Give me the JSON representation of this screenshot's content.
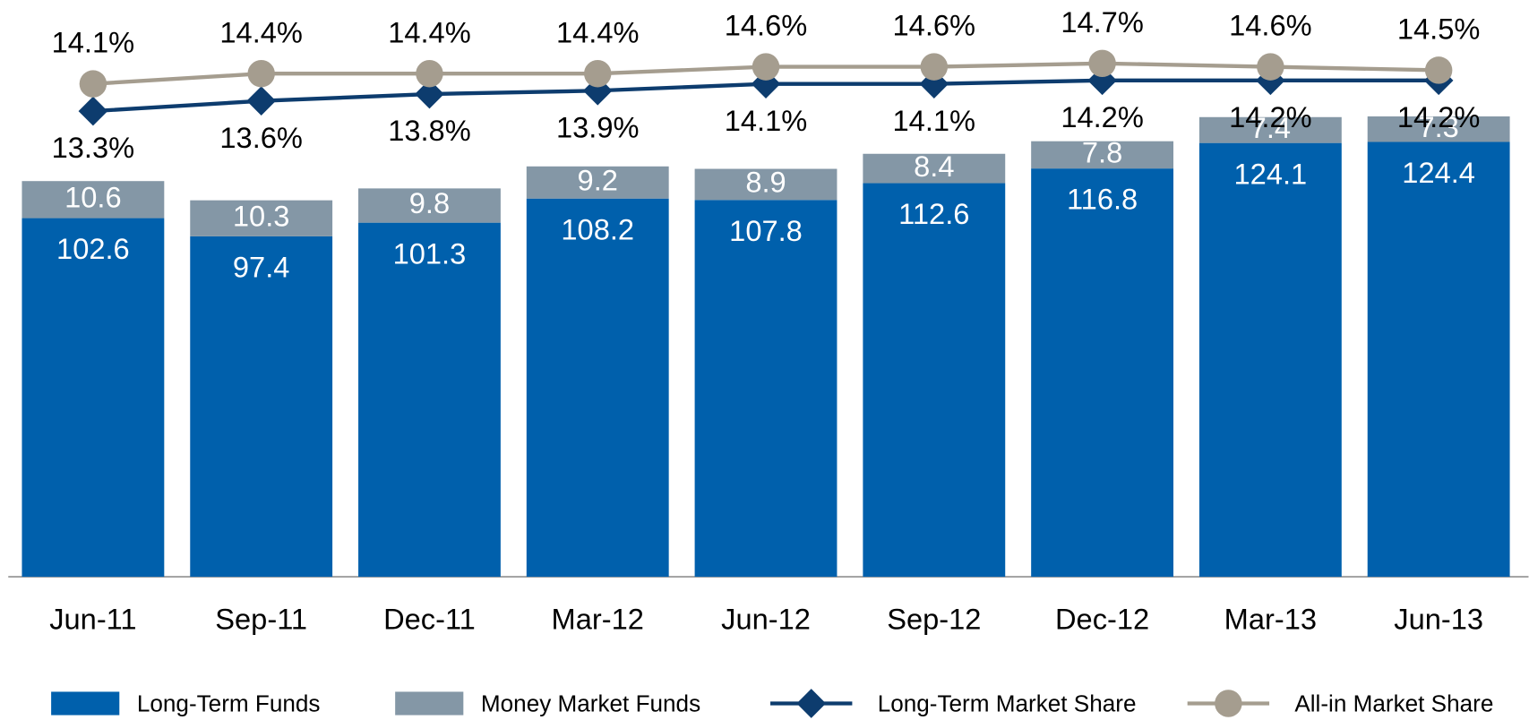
{
  "chart_data": {
    "type": "bar",
    "stacked": true,
    "categories": [
      "Jun-11",
      "Sep-11",
      "Dec-11",
      "Mar-12",
      "Jun-12",
      "Sep-12",
      "Dec-12",
      "Mar-13",
      "Jun-13"
    ],
    "ylim": [
      0,
      165
    ],
    "y2lim": [
      -0.36,
      16.56
    ],
    "legend": "bottom",
    "series": [
      {
        "name": "Long-Term Funds",
        "type": "bar",
        "color": "#0060ac",
        "values": [
          102.6,
          97.4,
          101.3,
          108.2,
          107.8,
          112.6,
          116.8,
          124.1,
          124.4
        ]
      },
      {
        "name": "Money Market Funds",
        "type": "bar",
        "color": "#8497a6",
        "values": [
          10.6,
          10.3,
          9.8,
          9.2,
          8.9,
          8.4,
          7.8,
          7.4,
          7.3
        ]
      },
      {
        "name": "Long-Term Market Share",
        "type": "line",
        "marker": "diamond",
        "axis": "y2",
        "color": "#0d3c6e",
        "values": [
          13.3,
          13.6,
          13.8,
          13.9,
          14.1,
          14.1,
          14.2,
          14.2,
          14.2
        ],
        "value_labels": [
          "13.3%",
          "13.6%",
          "13.8%",
          "13.9%",
          "14.1%",
          "14.1%",
          "14.2%",
          "14.2%",
          "14.2%"
        ]
      },
      {
        "name": "All-in Market Share",
        "type": "line",
        "marker": "circle",
        "axis": "y2",
        "color": "#a59d8f",
        "values": [
          14.1,
          14.4,
          14.4,
          14.4,
          14.6,
          14.6,
          14.7,
          14.6,
          14.5
        ],
        "value_labels": [
          "14.1%",
          "14.4%",
          "14.4%",
          "14.4%",
          "14.6%",
          "14.6%",
          "14.7%",
          "14.6%",
          "14.5%"
        ]
      }
    ]
  }
}
